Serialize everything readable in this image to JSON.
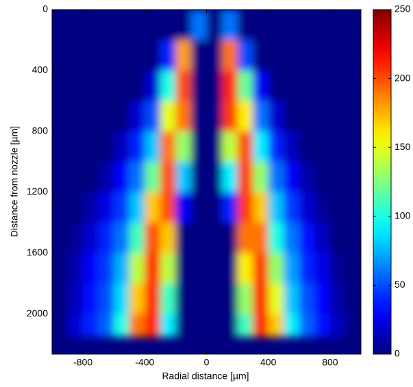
{
  "chart_data": {
    "type": "heatmap",
    "xlabel": "Radial distance [µm]",
    "ylabel": "Distance from nozzle [µm]",
    "xlim": [
      -1000,
      1000
    ],
    "ylim": [
      0,
      2265
    ],
    "y_reversed": true,
    "xticks": [
      -800,
      -400,
      0,
      400,
      800
    ],
    "yticks": [
      0,
      400,
      800,
      1200,
      1600,
      2000
    ],
    "xedges": [
      -1000,
      -900,
      -800,
      -700,
      -600,
      -500,
      -400,
      -300,
      -200,
      -100,
      0,
      100,
      200,
      300,
      400,
      500,
      600,
      700,
      800,
      900,
      1000
    ],
    "yedges": [
      0,
      200,
      400,
      600,
      800,
      1000,
      1200,
      1400,
      1600,
      1800,
      2000,
      2150
    ],
    "z": [
      [
        0,
        0,
        0,
        0,
        0,
        0,
        0,
        0,
        0,
        60,
        0,
        60,
        0,
        0,
        0,
        0,
        0,
        0,
        0,
        0
      ],
      [
        0,
        0,
        0,
        0,
        0,
        0,
        0,
        40,
        180,
        0,
        0,
        190,
        50,
        0,
        0,
        0,
        0,
        0,
        0,
        0
      ],
      [
        0,
        0,
        0,
        0,
        0,
        0,
        20,
        100,
        200,
        0,
        0,
        210,
        120,
        30,
        0,
        0,
        0,
        0,
        0,
        0
      ],
      [
        0,
        0,
        0,
        0,
        0,
        20,
        50,
        150,
        190,
        0,
        0,
        205,
        160,
        60,
        20,
        0,
        0,
        0,
        0,
        0
      ],
      [
        0,
        0,
        0,
        0,
        15,
        40,
        80,
        190,
        130,
        0,
        0,
        140,
        200,
        90,
        40,
        15,
        0,
        0,
        0,
        0
      ],
      [
        0,
        0,
        0,
        10,
        30,
        60,
        120,
        200,
        80,
        0,
        0,
        90,
        205,
        130,
        60,
        30,
        10,
        0,
        0,
        0
      ],
      [
        0,
        0,
        10,
        25,
        45,
        80,
        170,
        200,
        30,
        0,
        0,
        40,
        205,
        170,
        80,
        45,
        20,
        5,
        0,
        0
      ],
      [
        0,
        5,
        20,
        40,
        60,
        110,
        200,
        170,
        0,
        0,
        0,
        0,
        190,
        190,
        100,
        60,
        35,
        15,
        0,
        0
      ],
      [
        0,
        10,
        30,
        45,
        75,
        140,
        210,
        140,
        0,
        0,
        0,
        0,
        160,
        205,
        130,
        70,
        40,
        25,
        5,
        0
      ],
      [
        0,
        15,
        35,
        50,
        85,
        170,
        210,
        110,
        0,
        0,
        0,
        0,
        130,
        210,
        150,
        80,
        50,
        30,
        10,
        0
      ],
      [
        0,
        20,
        40,
        55,
        100,
        190,
        210,
        90,
        0,
        0,
        0,
        0,
        110,
        210,
        170,
        90,
        55,
        35,
        15,
        0
      ]
    ],
    "colormap": "jet",
    "clim": [
      0,
      250
    ],
    "cticks": [
      0,
      50,
      100,
      150,
      200,
      250
    ]
  }
}
